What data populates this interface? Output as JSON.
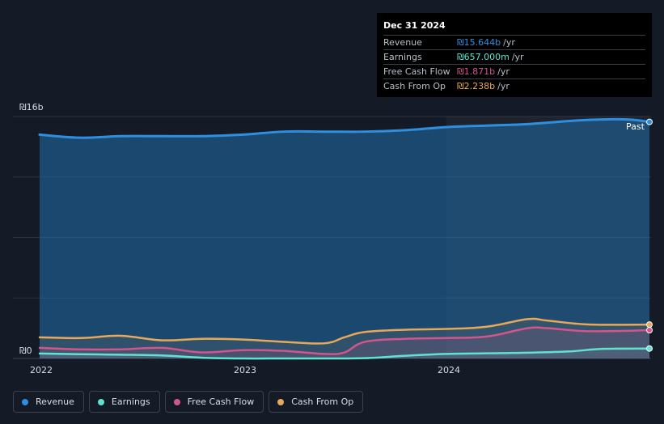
{
  "tooltip": {
    "date": "Dec 31 2024",
    "rows": [
      {
        "name": "Revenue",
        "value": "₪15.644b",
        "unit": "/yr",
        "color": "#2e8fe0"
      },
      {
        "name": "Earnings",
        "value": "₪657.000m",
        "unit": "/yr",
        "color": "#5fe3cf"
      },
      {
        "name": "Free Cash Flow",
        "value": "₪1.871b",
        "unit": "/yr",
        "color": "#d2558c"
      },
      {
        "name": "Cash From Op",
        "value": "₪2.238b",
        "unit": "/yr",
        "color": "#e8a85a"
      }
    ]
  },
  "past_label": "Past",
  "legend": [
    {
      "label": "Revenue",
      "color": "#2e8fe0"
    },
    {
      "label": "Earnings",
      "color": "#5fe3cf"
    },
    {
      "label": "Free Cash Flow",
      "color": "#d2558c"
    },
    {
      "label": "Cash From Op",
      "color": "#e8a85a"
    }
  ],
  "chart_data": {
    "type": "area",
    "ylim": [
      0,
      16
    ],
    "y_unit": "₪ billions",
    "y_tick_labels": [
      "₪16b",
      "₪0"
    ],
    "x_tick_labels": [
      "2022",
      "2023",
      "2024"
    ],
    "x_range": [
      2022.0,
      2025.0
    ],
    "grid": true,
    "series": [
      {
        "name": "Revenue",
        "color": "#2e8fe0",
        "x": [
          2022.0,
          2022.2,
          2022.4,
          2022.6,
          2022.8,
          2023.0,
          2023.2,
          2023.4,
          2023.6,
          2023.8,
          2024.0,
          2024.2,
          2024.4,
          2024.6,
          2024.75,
          2024.9,
          2025.0
        ],
        "y": [
          14.8,
          14.6,
          14.7,
          14.7,
          14.7,
          14.8,
          15.0,
          15.0,
          15.0,
          15.1,
          15.3,
          15.4,
          15.5,
          15.7,
          15.8,
          15.8,
          15.644
        ]
      },
      {
        "name": "Earnings",
        "color": "#5fe3cf",
        "x": [
          2022.0,
          2022.2,
          2022.4,
          2022.6,
          2022.8,
          2023.0,
          2023.2,
          2023.4,
          2023.6,
          2023.8,
          2024.0,
          2024.2,
          2024.4,
          2024.6,
          2024.75,
          2024.9,
          2025.0
        ],
        "y": [
          0.33,
          0.28,
          0.25,
          0.2,
          0.05,
          0.0,
          0.0,
          0.0,
          0.02,
          0.18,
          0.3,
          0.34,
          0.38,
          0.46,
          0.62,
          0.65,
          0.657
        ]
      },
      {
        "name": "Free Cash Flow",
        "color": "#d2558c",
        "x": [
          2022.0,
          2022.2,
          2022.4,
          2022.6,
          2022.8,
          2023.0,
          2023.2,
          2023.4,
          2023.5,
          2023.6,
          2023.8,
          2024.0,
          2024.2,
          2024.4,
          2024.5,
          2024.7,
          2025.0
        ],
        "y": [
          0.7,
          0.6,
          0.6,
          0.7,
          0.4,
          0.55,
          0.5,
          0.3,
          0.4,
          1.1,
          1.3,
          1.35,
          1.45,
          2.0,
          2.0,
          1.8,
          1.871
        ]
      },
      {
        "name": "Cash From Op",
        "color": "#e8a85a",
        "x": [
          2022.0,
          2022.2,
          2022.4,
          2022.6,
          2022.8,
          2023.0,
          2023.2,
          2023.4,
          2023.5,
          2023.6,
          2023.8,
          2024.0,
          2024.2,
          2024.4,
          2024.5,
          2024.7,
          2025.0
        ],
        "y": [
          1.4,
          1.35,
          1.5,
          1.2,
          1.3,
          1.25,
          1.1,
          1.0,
          1.4,
          1.75,
          1.9,
          1.95,
          2.1,
          2.6,
          2.5,
          2.25,
          2.238
        ]
      }
    ]
  }
}
